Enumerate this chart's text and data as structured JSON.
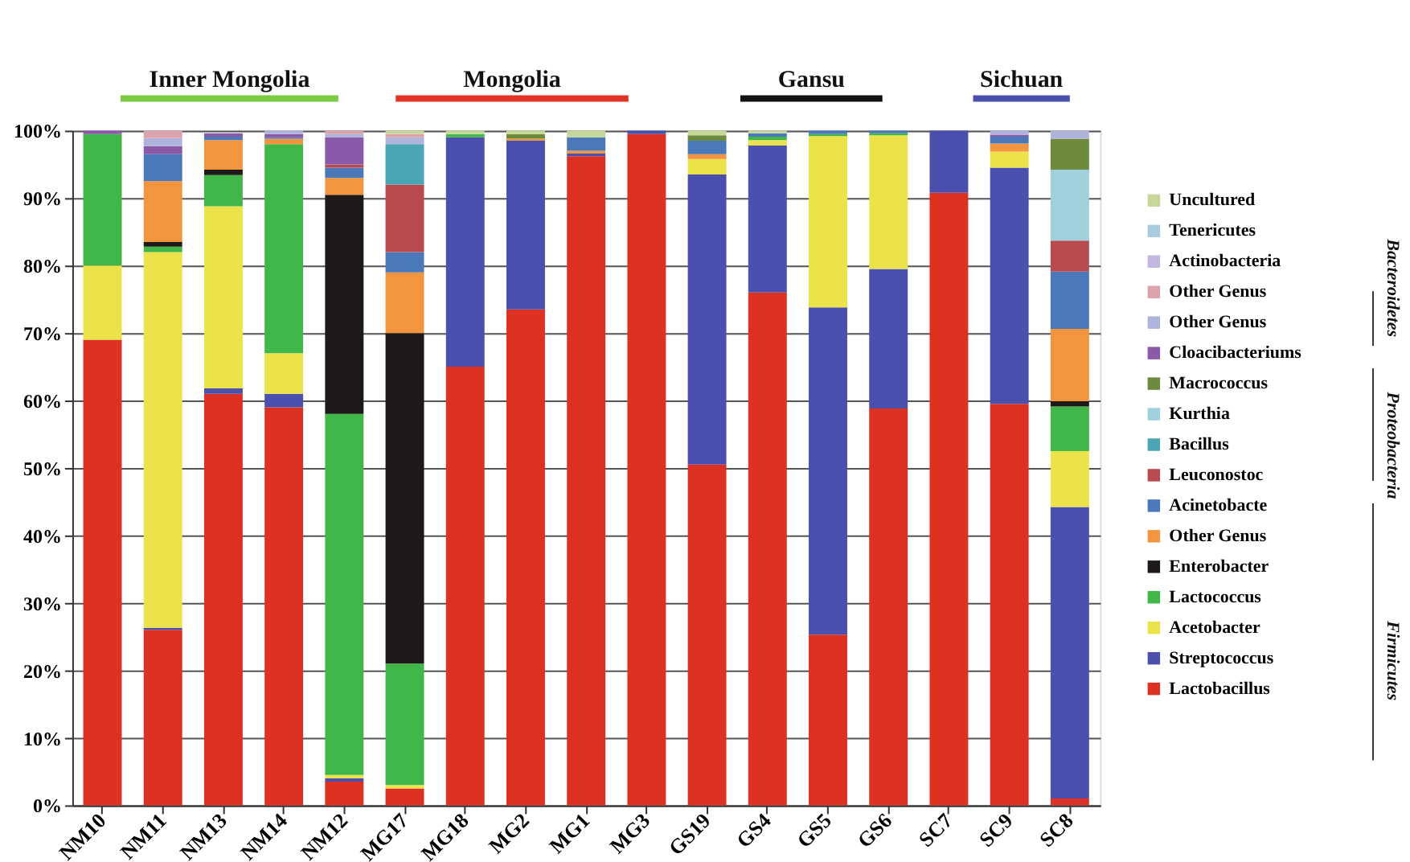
{
  "chart_data": {
    "type": "bar",
    "stacked": true,
    "grid": "y",
    "legend": "right",
    "categories": [
      "NM10",
      "NM11",
      "NM13",
      "NM14",
      "NM12",
      "MG17",
      "MG18",
      "MG2",
      "MG1",
      "MG3",
      "GS19",
      "GS4",
      "GS5",
      "GS6",
      "SC7",
      "SC9",
      "SC8"
    ],
    "ylim": [
      0,
      100
    ],
    "yticks": [
      {
        "value": 0,
        "label": "0%"
      },
      {
        "value": 10,
        "label": "10%"
      },
      {
        "value": 20,
        "label": "20%"
      },
      {
        "value": 30,
        "label": "30%"
      },
      {
        "value": 40,
        "label": "40%"
      },
      {
        "value": 50,
        "label": "50%"
      },
      {
        "value": 60,
        "label": "60%"
      },
      {
        "value": 70,
        "label": "70%"
      },
      {
        "value": 80,
        "label": "80%"
      },
      {
        "value": 90,
        "label": "90%"
      },
      {
        "value": 100,
        "label": "100%"
      }
    ],
    "series": [
      {
        "name": "Lactobacillus",
        "color": "#dd3222",
        "values": [
          69,
          26,
          61,
          59,
          3.5,
          2.5,
          65,
          73.5,
          96.2,
          99.5,
          50.5,
          76,
          25.3,
          58.8,
          90.8,
          59.5,
          1
        ]
      },
      {
        "name": "Streptococcus",
        "color": "#4b4fae",
        "values": [
          null,
          0.3,
          0.8,
          2,
          0.5,
          null,
          34,
          25,
          0.4,
          0.5,
          43,
          21.8,
          48.5,
          20.7,
          9.2,
          35,
          43.2
        ]
      },
      {
        "name": "Acetobacter",
        "color": "#ece24a",
        "values": [
          11,
          55.7,
          27,
          6,
          0.5,
          0.5,
          null,
          null,
          null,
          null,
          2.3,
          0.8,
          25.4,
          19.8,
          null,
          2.4,
          8.3
        ]
      },
      {
        "name": "Lactococcus",
        "color": "#41b649",
        "values": [
          19.5,
          0.8,
          4.6,
          31,
          53.5,
          18,
          0.5,
          null,
          null,
          null,
          null,
          0.5,
          0.3,
          0.3,
          null,
          null,
          6.6
        ]
      },
      {
        "name": "Enterobacter",
        "color": "#1e1a1a",
        "values": [
          null,
          0.7,
          0.8,
          null,
          32.5,
          49,
          null,
          null,
          null,
          null,
          null,
          null,
          null,
          null,
          null,
          null,
          0.8
        ]
      },
      {
        "name": "Other Genus",
        "color": "#f3953f",
        "values": [
          null,
          9,
          4.4,
          0.8,
          2.5,
          9,
          null,
          0.3,
          0.4,
          null,
          0.7,
          null,
          null,
          null,
          null,
          1.2,
          10.7
        ]
      },
      {
        "name": "Acinetobacte",
        "color": "#4a78b8",
        "values": [
          null,
          4,
          0.5,
          0.2,
          1.5,
          3,
          null,
          null,
          2,
          null,
          2,
          0.5,
          0.5,
          0.4,
          null,
          1,
          8.5
        ]
      },
      {
        "name": "Leuconostoc",
        "color": "#b94a4f",
        "values": [
          null,
          null,
          null,
          null,
          0.5,
          10,
          null,
          null,
          null,
          null,
          null,
          null,
          null,
          null,
          null,
          null,
          4.6
        ]
      },
      {
        "name": "Bacillus",
        "color": "#4aa5b5",
        "values": [
          null,
          null,
          null,
          null,
          null,
          6,
          null,
          null,
          null,
          null,
          null,
          null,
          null,
          null,
          null,
          null,
          null
        ]
      },
      {
        "name": "Kurthia",
        "color": "#9fd0dc",
        "values": [
          null,
          null,
          null,
          null,
          null,
          null,
          null,
          null,
          null,
          null,
          null,
          null,
          null,
          null,
          null,
          null,
          10.5
        ]
      },
      {
        "name": "Macrococcus",
        "color": "#6e8b3d",
        "values": [
          null,
          null,
          null,
          null,
          null,
          null,
          null,
          0.7,
          null,
          null,
          0.8,
          null,
          null,
          null,
          null,
          null,
          4.6
        ]
      },
      {
        "name": "Cloacibacteriums",
        "color": "#8a5aa8",
        "values": [
          0.5,
          1.2,
          0.5,
          0.5,
          4,
          null,
          null,
          null,
          null,
          null,
          null,
          null,
          null,
          null,
          null,
          0.3,
          null
        ]
      },
      {
        "name": "Other Genus",
        "color": "#afb4dd",
        "values": [
          null,
          1.2,
          null,
          0.5,
          0.5,
          1,
          null,
          null,
          null,
          null,
          null,
          null,
          null,
          null,
          null,
          0.6,
          1.2
        ]
      },
      {
        "name": "Other Genus",
        "color": "#dba3ab",
        "values": [
          null,
          1.1,
          null,
          null,
          0.5,
          0.5,
          null,
          null,
          null,
          null,
          null,
          null,
          null,
          null,
          null,
          null,
          null
        ]
      },
      {
        "name": "Actinobacteria",
        "color": "#c3b7df",
        "values": [
          null,
          null,
          null,
          null,
          null,
          null,
          null,
          null,
          null,
          null,
          null,
          null,
          null,
          null,
          null,
          null,
          null
        ]
      },
      {
        "name": "Tenericutes",
        "color": "#a8cde0",
        "values": [
          null,
          null,
          null,
          null,
          null,
          null,
          null,
          null,
          null,
          null,
          null,
          null,
          null,
          null,
          null,
          null,
          null
        ]
      },
      {
        "name": "Uncultured",
        "color": "#c5d89a",
        "values": [
          null,
          null,
          null,
          null,
          null,
          0.5,
          0.5,
          0.5,
          1,
          null,
          0.7,
          0.4,
          null,
          null,
          null,
          null,
          null
        ]
      }
    ],
    "annotations": [
      "Inner Mongolia",
      "Mongolia",
      "Gansu",
      "Sichuan",
      "Bacteroidetes",
      "Proteobacteria",
      "Firmicutes"
    ]
  }
}
